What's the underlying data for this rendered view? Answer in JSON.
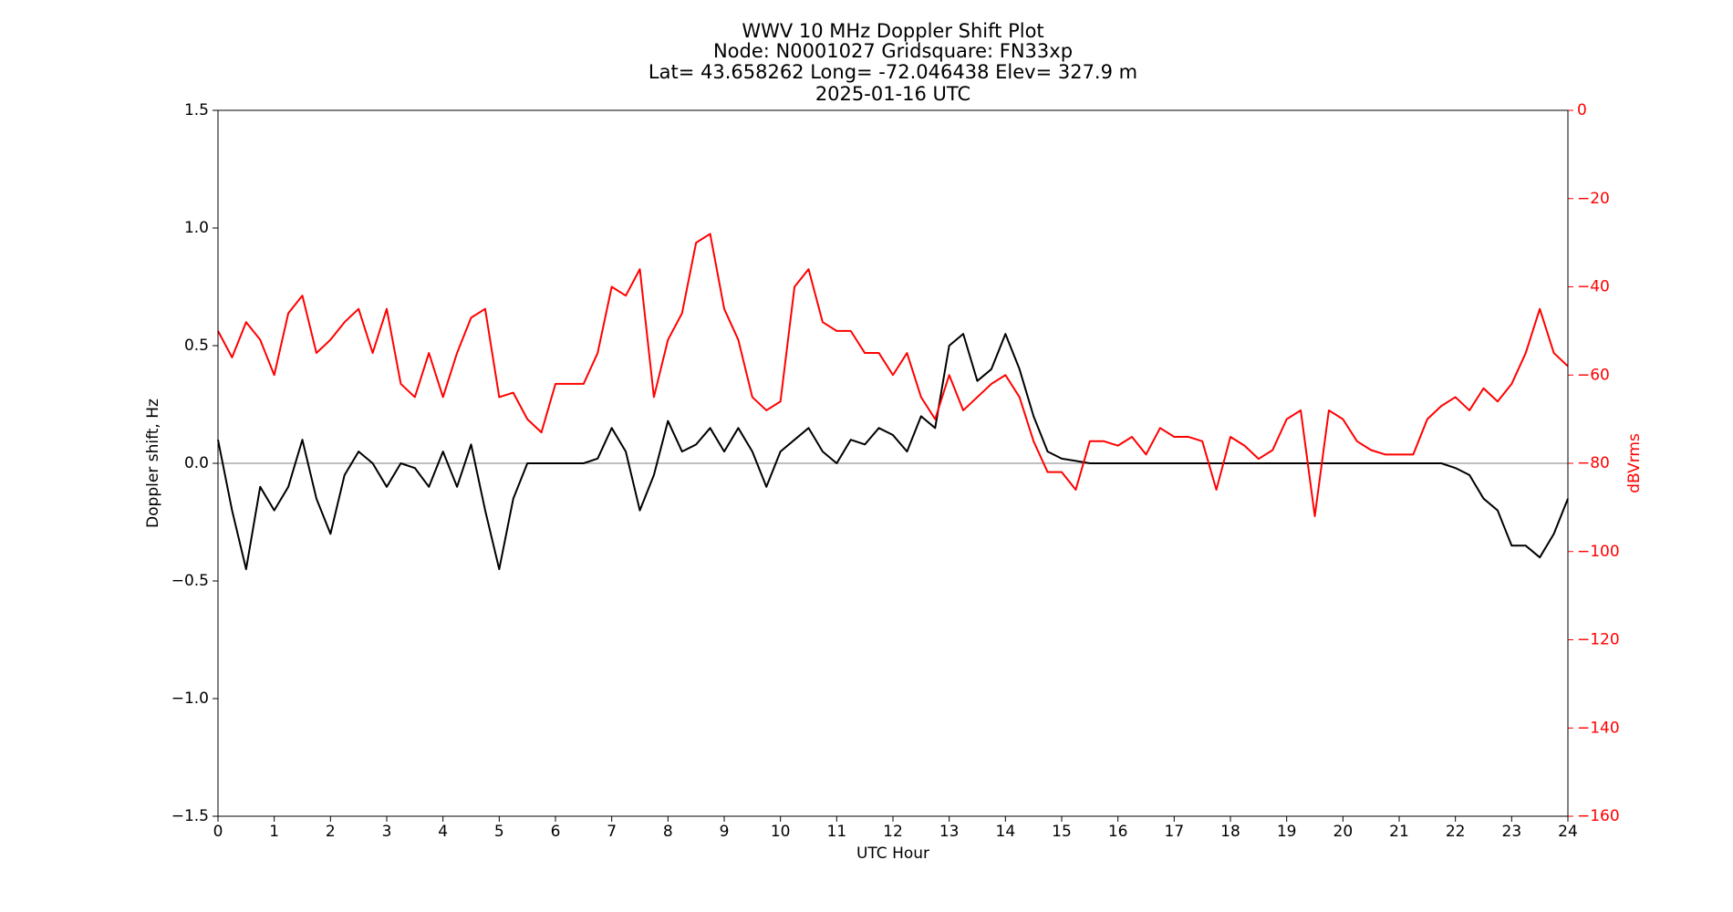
{
  "chart_data": {
    "type": "line",
    "title": [
      "WWV 10 MHz Doppler Shift Plot",
      "Node:  N0001027     Gridsquare:  FN33xp",
      "Lat=   43.658262    Long= -72.046438    Elev= 327.9 m",
      "2025-01-16  UTC"
    ],
    "xlabel": "UTC Hour",
    "ylabel": "Doppler shift, Hz",
    "y2label": "dBVrms",
    "x": [
      0,
      0.25,
      0.5,
      0.75,
      1,
      1.25,
      1.5,
      1.75,
      2,
      2.25,
      2.5,
      2.75,
      3,
      3.25,
      3.5,
      3.75,
      4,
      4.25,
      4.5,
      4.75,
      5,
      5.25,
      5.5,
      5.75,
      6,
      6.25,
      6.5,
      6.75,
      7,
      7.25,
      7.5,
      7.75,
      8,
      8.25,
      8.5,
      8.75,
      9,
      9.25,
      9.5,
      9.75,
      10,
      10.25,
      10.5,
      10.75,
      11,
      11.25,
      11.5,
      11.75,
      12,
      12.25,
      12.5,
      12.75,
      13,
      13.25,
      13.5,
      13.75,
      14,
      14.25,
      14.5,
      14.75,
      15,
      15.25,
      15.5,
      15.75,
      16,
      16.25,
      16.5,
      16.75,
      17,
      17.25,
      17.5,
      17.75,
      18,
      18.25,
      18.5,
      18.75,
      19,
      19.25,
      19.5,
      19.75,
      20,
      20.25,
      20.5,
      20.75,
      21,
      21.25,
      21.5,
      21.75,
      22,
      22.25,
      22.5,
      22.75,
      23,
      23.25,
      23.5,
      23.75,
      24
    ],
    "series": [
      {
        "color": "#000000",
        "axis": "y",
        "values": [
          0.1,
          -0.2,
          -0.45,
          -0.1,
          -0.2,
          -0.1,
          0.1,
          -0.15,
          -0.3,
          -0.05,
          0.05,
          0,
          -0.1,
          0,
          -0.02,
          -0.1,
          0.05,
          -0.1,
          0.08,
          -0.2,
          -0.45,
          -0.15,
          0,
          0,
          0,
          0,
          0,
          0.02,
          0.15,
          0.05,
          -0.2,
          -0.05,
          0.18,
          0.05,
          0.08,
          0.15,
          0.05,
          0.15,
          0.05,
          -0.1,
          0.05,
          0.1,
          0.15,
          0.05,
          0,
          0.1,
          0.08,
          0.15,
          0.12,
          0.05,
          0.2,
          0.15,
          0.5,
          0.55,
          0.35,
          0.4,
          0.55,
          0.4,
          0.2,
          0.05,
          0.02,
          0.01,
          0,
          0,
          0,
          0,
          0,
          0,
          0,
          0,
          0,
          0,
          0,
          0,
          0,
          0,
          0,
          0,
          0,
          0,
          0,
          0,
          0,
          0,
          0,
          0,
          0,
          0,
          -0.02,
          -0.05,
          -0.15,
          -0.2,
          -0.35,
          -0.35,
          -0.4,
          -0.3,
          -0.15
        ]
      },
      {
        "color": "#ff0000",
        "axis": "y2",
        "values": [
          -50,
          -56,
          -48,
          -52,
          -60,
          -46,
          -42,
          -55,
          -52,
          -48,
          -45,
          -55,
          -45,
          -62,
          -65,
          -55,
          -65,
          -55,
          -47,
          -45,
          -65,
          -64,
          -70,
          -73,
          -62,
          -62,
          -62,
          -55,
          -40,
          -42,
          -36,
          -65,
          -52,
          -46,
          -30,
          -28,
          -45,
          -52,
          -65,
          -68,
          -66,
          -40,
          -36,
          -48,
          -50,
          -50,
          -55,
          -55,
          -60,
          -55,
          -65,
          -70,
          -60,
          -68,
          -65,
          -62,
          -60,
          -65,
          -75,
          -82,
          -82,
          -86,
          -75,
          -75,
          -76,
          -74,
          -78,
          -72,
          -74,
          -74,
          -75,
          -86,
          -74,
          -76,
          -79,
          -77,
          -70,
          -68,
          -92,
          -68,
          -70,
          -75,
          -77,
          -78,
          -78,
          -78,
          -70,
          -67,
          -65,
          -68,
          -63,
          -66,
          -62,
          -55,
          -45,
          -55,
          -58
        ]
      }
    ],
    "xlim": [
      0,
      24
    ],
    "xticks": [
      0,
      1,
      2,
      3,
      4,
      5,
      6,
      7,
      8,
      9,
      10,
      11,
      12,
      13,
      14,
      15,
      16,
      17,
      18,
      19,
      20,
      21,
      22,
      23,
      24
    ],
    "ylim": [
      -1.5,
      1.5
    ],
    "yticks": [
      {
        "value": -1.5,
        "label": "−1.5"
      },
      {
        "value": -1.0,
        "label": "−1.0"
      },
      {
        "value": -0.5,
        "label": "−0.5"
      },
      {
        "value": 0,
        "label": "0.0"
      },
      0.5,
      {
        "value": 1.0,
        "label": "1.0"
      },
      1.5
    ],
    "y2lim": [
      -160,
      0
    ],
    "y2ticks": [
      {
        "value": -160,
        "label": "−160"
      },
      {
        "value": -140,
        "label": "−140"
      },
      {
        "value": -120,
        "label": "−120"
      },
      {
        "value": -100,
        "label": "−100"
      },
      {
        "value": -80,
        "label": "−80"
      },
      {
        "value": -60,
        "label": "−60"
      },
      {
        "value": -40,
        "label": "−40"
      },
      {
        "value": -20,
        "label": "−20"
      },
      0
    ],
    "zero_line_color": "#999999",
    "y2_color": "#ff0000"
  }
}
